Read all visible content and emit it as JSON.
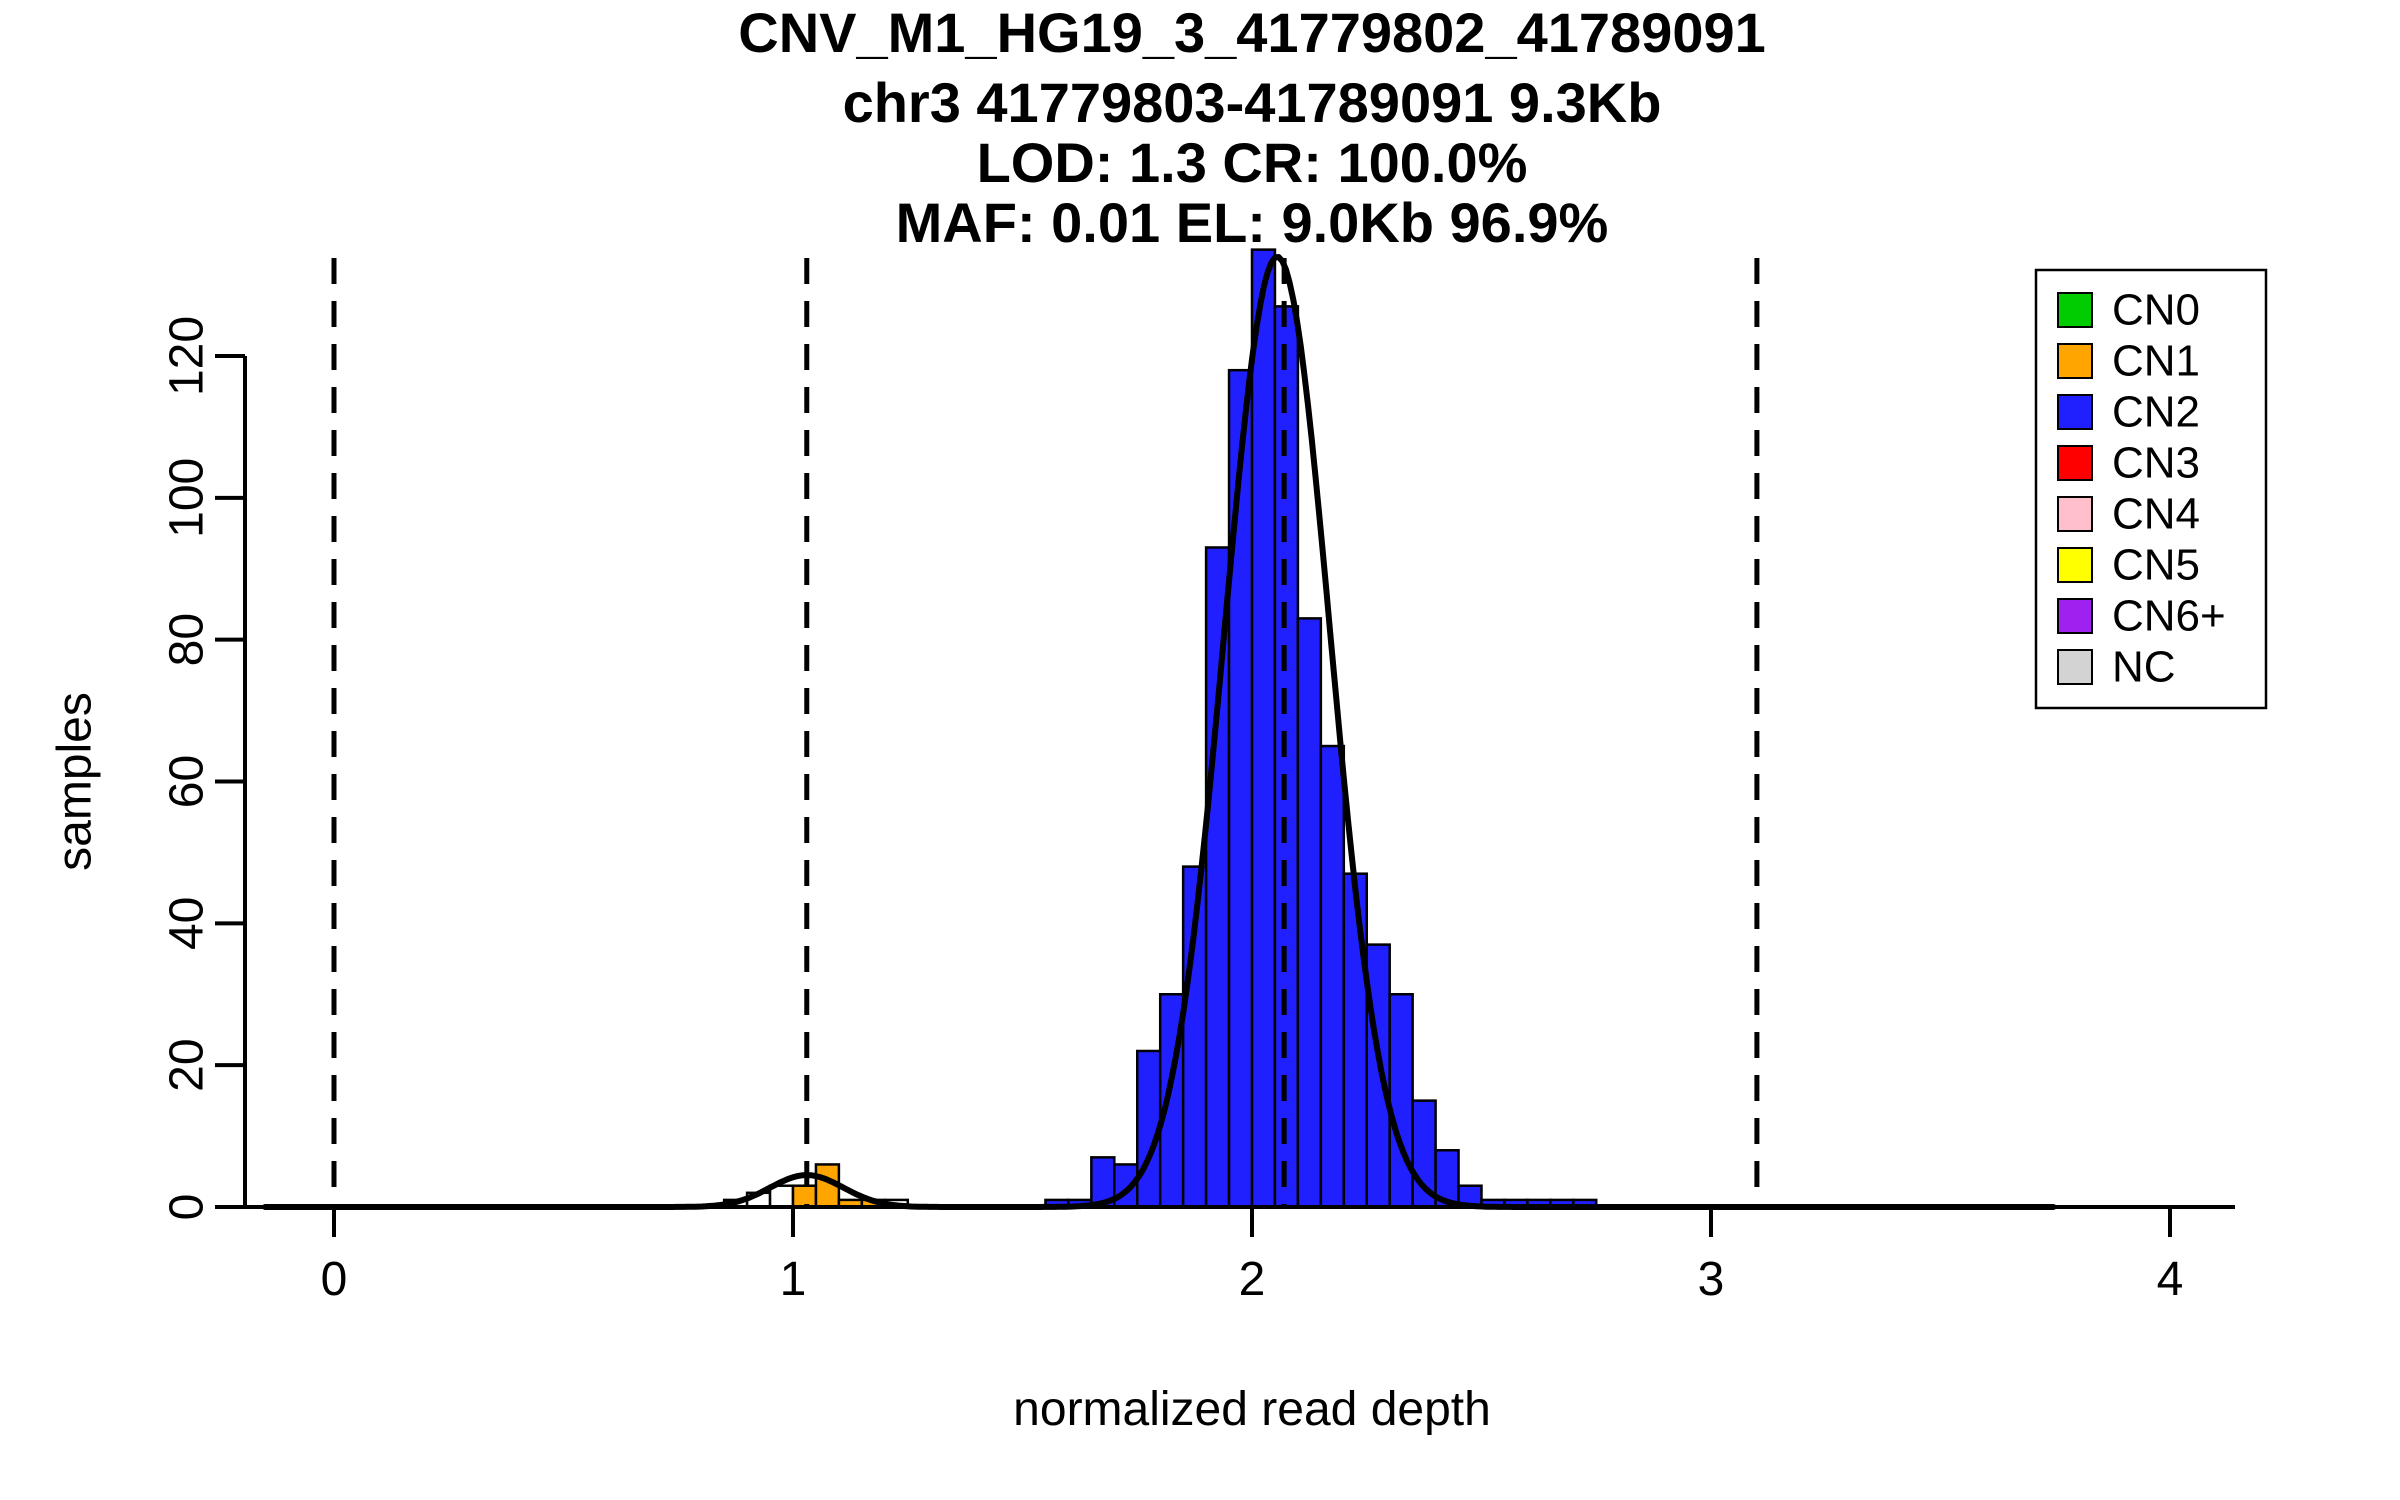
{
  "figure": {
    "background": "#FFFFFF",
    "kind": "R-base-graphics histogram with density overlay"
  },
  "chart_data": {
    "type": "bar",
    "subtype": "histogram-with-density-curve",
    "title_lines": [
      "CNV_M1_HG19_3_41779802_41789091",
      "chr3 41779803-41789091 9.3Kb",
      "LOD: 1.3 CR: 100.0%",
      "MAF: 0.01 EL: 9.0Kb 96.9%"
    ],
    "xlabel": "normalized read depth",
    "ylabel": "samples",
    "xlim": [
      -0.2,
      4.2
    ],
    "ylim": [
      0,
      135
    ],
    "x_ticks": [
      0,
      1,
      2,
      3,
      4
    ],
    "y_ticks": [
      0,
      20,
      40,
      60,
      80,
      100,
      120
    ],
    "dashed_vlines_x": [
      0.0,
      1.03,
      2.07,
      3.1
    ],
    "bin_width": 0.05,
    "bars": [
      {
        "x": 0.85,
        "h": 1,
        "cn": "NC",
        "color": "#FFFFFF"
      },
      {
        "x": 0.9,
        "h": 2,
        "cn": "NC",
        "color": "#FFFFFF"
      },
      {
        "x": 0.95,
        "h": 3,
        "cn": "NC",
        "color": "#FFFFFF"
      },
      {
        "x": 1.0,
        "h": 3,
        "cn": "CN1",
        "color": "#FFA500"
      },
      {
        "x": 1.05,
        "h": 6,
        "cn": "CN1",
        "color": "#FFA500"
      },
      {
        "x": 1.1,
        "h": 1,
        "cn": "CN1",
        "color": "#FFA500"
      },
      {
        "x": 1.15,
        "h": 1,
        "cn": "CN1",
        "color": "#FFA500"
      },
      {
        "x": 1.2,
        "h": 1,
        "cn": "NC",
        "color": "#FFFFFF"
      },
      {
        "x": 1.55,
        "h": 1,
        "cn": "CN2",
        "color": "#2020FF"
      },
      {
        "x": 1.6,
        "h": 1,
        "cn": "CN2",
        "color": "#2020FF"
      },
      {
        "x": 1.65,
        "h": 7,
        "cn": "CN2",
        "color": "#2020FF"
      },
      {
        "x": 1.7,
        "h": 6,
        "cn": "CN2",
        "color": "#2020FF"
      },
      {
        "x": 1.75,
        "h": 22,
        "cn": "CN2",
        "color": "#2020FF"
      },
      {
        "x": 1.8,
        "h": 30,
        "cn": "CN2",
        "color": "#2020FF"
      },
      {
        "x": 1.85,
        "h": 48,
        "cn": "CN2",
        "color": "#2020FF"
      },
      {
        "x": 1.9,
        "h": 93,
        "cn": "CN2",
        "color": "#2020FF"
      },
      {
        "x": 1.95,
        "h": 118,
        "cn": "CN2",
        "color": "#2020FF"
      },
      {
        "x": 2.0,
        "h": 135,
        "cn": "CN2",
        "color": "#2020FF"
      },
      {
        "x": 2.05,
        "h": 127,
        "cn": "CN2",
        "color": "#2020FF"
      },
      {
        "x": 2.1,
        "h": 83,
        "cn": "CN2",
        "color": "#2020FF"
      },
      {
        "x": 2.15,
        "h": 65,
        "cn": "CN2",
        "color": "#2020FF"
      },
      {
        "x": 2.2,
        "h": 47,
        "cn": "CN2",
        "color": "#2020FF"
      },
      {
        "x": 2.25,
        "h": 37,
        "cn": "CN2",
        "color": "#2020FF"
      },
      {
        "x": 2.3,
        "h": 30,
        "cn": "CN2",
        "color": "#2020FF"
      },
      {
        "x": 2.35,
        "h": 15,
        "cn": "CN2",
        "color": "#2020FF"
      },
      {
        "x": 2.4,
        "h": 8,
        "cn": "CN2",
        "color": "#2020FF"
      },
      {
        "x": 2.45,
        "h": 3,
        "cn": "CN2",
        "color": "#2020FF"
      },
      {
        "x": 2.5,
        "h": 1,
        "cn": "CN2",
        "color": "#2020FF"
      },
      {
        "x": 2.55,
        "h": 1,
        "cn": "CN2",
        "color": "#2020FF"
      },
      {
        "x": 2.6,
        "h": 1,
        "cn": "CN2",
        "color": "#2020FF"
      },
      {
        "x": 2.65,
        "h": 1,
        "cn": "CN2",
        "color": "#2020FF"
      },
      {
        "x": 2.7,
        "h": 1,
        "cn": "CN2",
        "color": "#2020FF"
      }
    ],
    "density_curve": {
      "color": "#000000",
      "x_range": [
        -0.15,
        3.75
      ],
      "components": [
        {
          "mean": 2.055,
          "sd": 0.115,
          "peak": 134
        },
        {
          "mean": 1.03,
          "sd": 0.08,
          "peak": 4.5
        }
      ]
    },
    "legend": {
      "position": "top-right",
      "entries": [
        {
          "label": "CN0",
          "color": "#00CC00"
        },
        {
          "label": "CN1",
          "color": "#FFA500"
        },
        {
          "label": "CN2",
          "color": "#2020FF"
        },
        {
          "label": "CN3",
          "color": "#FF0000"
        },
        {
          "label": "CN4",
          "color": "#FFC0CB"
        },
        {
          "label": "CN5",
          "color": "#FFFF00"
        },
        {
          "label": "CN6+",
          "color": "#A020F0"
        },
        {
          "label": "NC",
          "color": "#D3D3D3"
        }
      ]
    }
  }
}
